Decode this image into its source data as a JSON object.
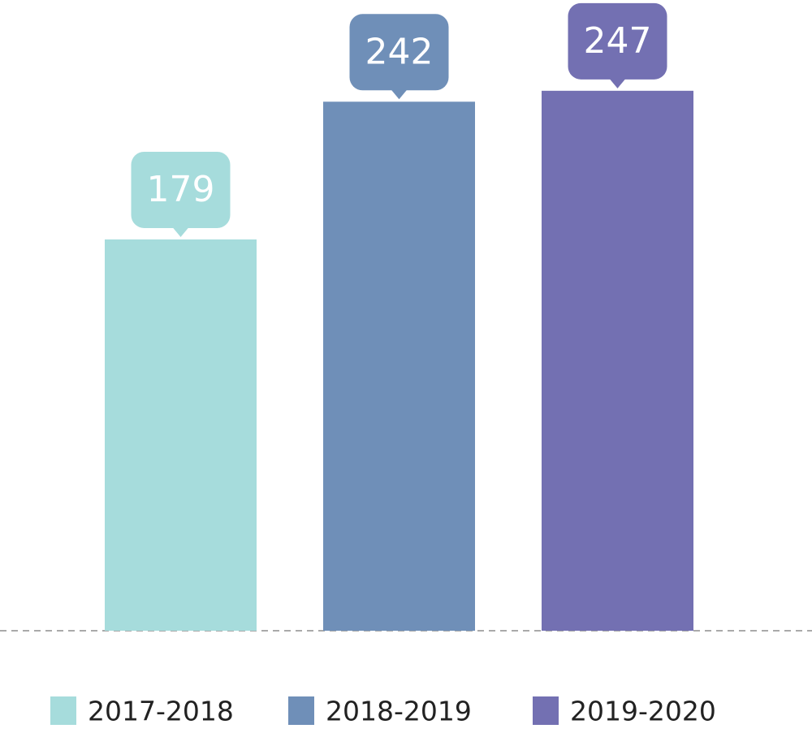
{
  "chart_data": {
    "type": "bar",
    "categories": [
      "2017-2018",
      "2018-2019",
      "2019-2020"
    ],
    "values": [
      179,
      242,
      247
    ],
    "colors": [
      "#a6dcdc",
      "#6f8fb8",
      "#7370b2"
    ],
    "legend": "bottom"
  }
}
